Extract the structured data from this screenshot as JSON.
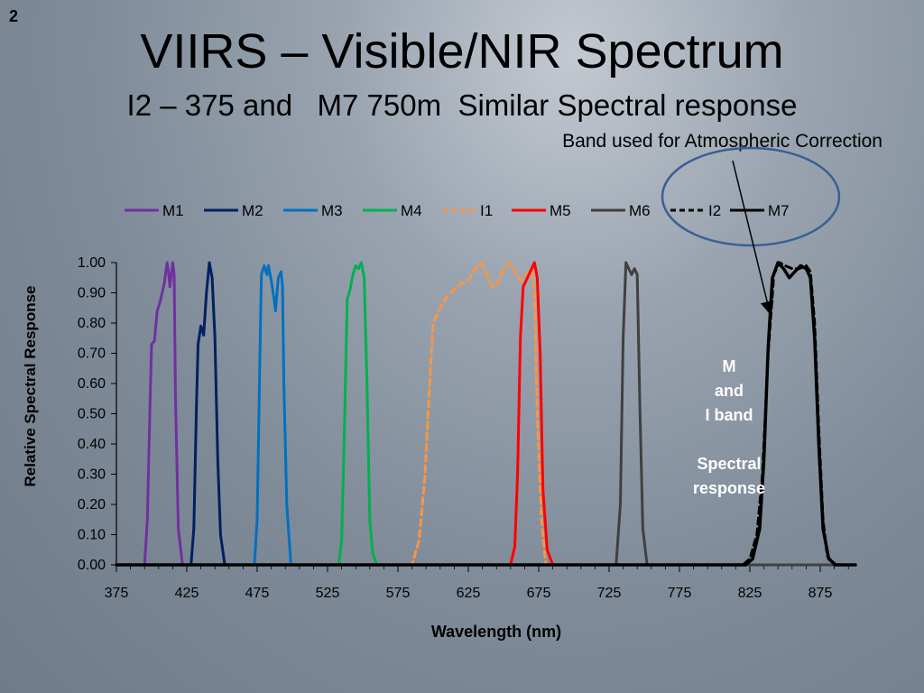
{
  "slide_number": "2",
  "title": "VIIRS – Visible/NIR Spectrum",
  "subtitle": "I2 – 375 and   M7 750m  Similar Spectral response",
  "annotation": "Band used for Atmospheric Correction",
  "side_note": {
    "line1": "M",
    "line2": "and",
    "line3": "I band",
    "line4": "Spectral",
    "line5": "response"
  },
  "chart_data": {
    "type": "line",
    "xlabel": "Wavelength (nm)",
    "ylabel": "Relative Spectral Response",
    "xlim": [
      375,
      900
    ],
    "ylim": [
      0,
      1.0
    ],
    "x_ticks": [
      375,
      425,
      475,
      525,
      575,
      625,
      675,
      725,
      775,
      825,
      875
    ],
    "y_ticks": [
      "0.00",
      "0.10",
      "0.20",
      "0.30",
      "0.40",
      "0.50",
      "0.60",
      "0.70",
      "0.80",
      "0.90",
      "1.00"
    ],
    "grid": false,
    "legend_position": "top",
    "series": [
      {
        "name": "M1",
        "color": "#7030A0",
        "dash": false,
        "width": 3,
        "points": [
          [
            395,
            0
          ],
          [
            397,
            0.15
          ],
          [
            399,
            0.55
          ],
          [
            400,
            0.73
          ],
          [
            402,
            0.74
          ],
          [
            404,
            0.84
          ],
          [
            406,
            0.87
          ],
          [
            409,
            0.93
          ],
          [
            411,
            1.0
          ],
          [
            412,
            0.97
          ],
          [
            413,
            0.92
          ],
          [
            415,
            1.0
          ],
          [
            416,
            0.96
          ],
          [
            417,
            0.55
          ],
          [
            419,
            0.12
          ],
          [
            422,
            0
          ]
        ]
      },
      {
        "name": "M2",
        "color": "#002060",
        "dash": false,
        "width": 3,
        "points": [
          [
            428,
            0
          ],
          [
            430,
            0.12
          ],
          [
            432,
            0.55
          ],
          [
            433,
            0.73
          ],
          [
            435,
            0.79
          ],
          [
            437,
            0.76
          ],
          [
            439,
            0.9
          ],
          [
            441,
            1.0
          ],
          [
            443,
            0.95
          ],
          [
            445,
            0.75
          ],
          [
            447,
            0.35
          ],
          [
            449,
            0.1
          ],
          [
            452,
            0
          ]
        ]
      },
      {
        "name": "M3",
        "color": "#0070C0",
        "dash": false,
        "width": 3,
        "points": [
          [
            473,
            0
          ],
          [
            475,
            0.15
          ],
          [
            477,
            0.7
          ],
          [
            478,
            0.96
          ],
          [
            480,
            0.99
          ],
          [
            482,
            0.96
          ],
          [
            483,
            0.99
          ],
          [
            485,
            0.94
          ],
          [
            487,
            0.88
          ],
          [
            488,
            0.84
          ],
          [
            490,
            0.95
          ],
          [
            492,
            0.97
          ],
          [
            493,
            0.92
          ],
          [
            494,
            0.6
          ],
          [
            496,
            0.2
          ],
          [
            499,
            0
          ]
        ]
      },
      {
        "name": "M4",
        "color": "#00B050",
        "dash": false,
        "width": 3,
        "points": [
          [
            533,
            0
          ],
          [
            535,
            0.08
          ],
          [
            537,
            0.45
          ],
          [
            539,
            0.88
          ],
          [
            541,
            0.91
          ],
          [
            543,
            0.96
          ],
          [
            545,
            0.99
          ],
          [
            547,
            0.98
          ],
          [
            549,
            1.0
          ],
          [
            551,
            0.95
          ],
          [
            553,
            0.6
          ],
          [
            555,
            0.15
          ],
          [
            557,
            0.04
          ],
          [
            560,
            0
          ]
        ]
      },
      {
        "name": "I1",
        "color": "#F79646",
        "dash": true,
        "width": 3,
        "points": [
          [
            585,
            0
          ],
          [
            590,
            0.08
          ],
          [
            594,
            0.28
          ],
          [
            597,
            0.55
          ],
          [
            600,
            0.8
          ],
          [
            605,
            0.85
          ],
          [
            610,
            0.89
          ],
          [
            615,
            0.91
          ],
          [
            620,
            0.93
          ],
          [
            625,
            0.94
          ],
          [
            630,
            0.98
          ],
          [
            634,
            1.0
          ],
          [
            638,
            0.96
          ],
          [
            642,
            0.92
          ],
          [
            646,
            0.93
          ],
          [
            650,
            0.98
          ],
          [
            654,
            1.0
          ],
          [
            658,
            0.97
          ],
          [
            662,
            0.94
          ],
          [
            666,
            0.96
          ],
          [
            670,
            0.98
          ],
          [
            672,
            0.9
          ],
          [
            674,
            0.5
          ],
          [
            677,
            0.15
          ],
          [
            680,
            0
          ]
        ]
      },
      {
        "name": "M5",
        "color": "#FF0000",
        "dash": false,
        "width": 3,
        "points": [
          [
            655,
            0
          ],
          [
            658,
            0.06
          ],
          [
            660,
            0.3
          ],
          [
            662,
            0.75
          ],
          [
            664,
            0.92
          ],
          [
            666,
            0.94
          ],
          [
            668,
            0.96
          ],
          [
            670,
            0.98
          ],
          [
            672,
            1.0
          ],
          [
            674,
            0.95
          ],
          [
            676,
            0.7
          ],
          [
            678,
            0.25
          ],
          [
            681,
            0.05
          ],
          [
            685,
            0
          ]
        ]
      },
      {
        "name": "M6",
        "color": "#404040",
        "dash": false,
        "width": 3,
        "points": [
          [
            730,
            0
          ],
          [
            733,
            0.2
          ],
          [
            735,
            0.75
          ],
          [
            737,
            1.0
          ],
          [
            739,
            0.98
          ],
          [
            741,
            0.96
          ],
          [
            743,
            0.98
          ],
          [
            745,
            0.96
          ],
          [
            747,
            0.5
          ],
          [
            749,
            0.12
          ],
          [
            752,
            0
          ]
        ]
      },
      {
        "name": "I2",
        "color": "#000000",
        "dash": true,
        "width": 3,
        "points": [
          [
            820,
            0
          ],
          [
            825,
            0.02
          ],
          [
            830,
            0.1
          ],
          [
            834,
            0.3
          ],
          [
            838,
            0.7
          ],
          [
            842,
            0.96
          ],
          [
            846,
            1.0
          ],
          [
            850,
            0.99
          ],
          [
            855,
            0.98
          ],
          [
            860,
            0.98
          ],
          [
            865,
            0.99
          ],
          [
            868,
            0.97
          ],
          [
            871,
            0.8
          ],
          [
            874,
            0.45
          ],
          [
            877,
            0.15
          ],
          [
            880,
            0.03
          ],
          [
            885,
            0
          ]
        ]
      },
      {
        "name": "M7",
        "color": "#000000",
        "dash": false,
        "width": 3.5,
        "points": [
          [
            822,
            0
          ],
          [
            827,
            0.02
          ],
          [
            832,
            0.12
          ],
          [
            835,
            0.35
          ],
          [
            838,
            0.72
          ],
          [
            841,
            0.95
          ],
          [
            845,
            1.0
          ],
          [
            849,
            0.98
          ],
          [
            853,
            0.95
          ],
          [
            857,
            0.97
          ],
          [
            861,
            0.99
          ],
          [
            865,
            0.98
          ],
          [
            868,
            0.95
          ],
          [
            871,
            0.75
          ],
          [
            874,
            0.4
          ],
          [
            877,
            0.12
          ],
          [
            881,
            0.02
          ],
          [
            886,
            0
          ]
        ]
      }
    ]
  }
}
